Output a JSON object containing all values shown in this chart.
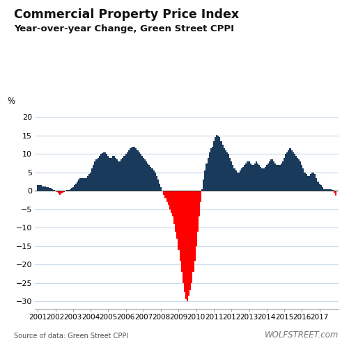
{
  "title1": "Commercial Property Price Index",
  "title2": "Year-over-year Change, Green Street CPPI",
  "ylabel": "%",
  "source": "Source of data: Green Street CPPI",
  "watermark": "WOLFSTREET.com",
  "color_positive": "#1a3a5c",
  "color_negative": "#ff0000",
  "ylim": [
    -32,
    22
  ],
  "yticks": [
    -30,
    -25,
    -20,
    -15,
    -10,
    -5,
    0,
    5,
    10,
    15,
    20
  ],
  "background_color": "#ffffff",
  "grid_color": "#c8d8e8",
  "values": [
    1.5,
    1.5,
    1.5,
    1.2,
    1.2,
    1.2,
    1.0,
    1.0,
    0.8,
    0.8,
    0.5,
    0.3,
    0.0,
    -0.3,
    -0.8,
    -1.0,
    -0.8,
    -0.5,
    -0.3,
    0.0,
    0.2,
    0.3,
    0.5,
    0.8,
    1.0,
    1.5,
    2.0,
    2.5,
    3.0,
    3.5,
    3.5,
    3.5,
    3.5,
    3.5,
    4.0,
    4.5,
    5.0,
    6.0,
    7.0,
    8.0,
    8.5,
    9.0,
    9.5,
    10.0,
    10.2,
    10.5,
    10.5,
    10.0,
    9.5,
    9.0,
    9.0,
    9.5,
    9.5,
    9.0,
    8.5,
    8.0,
    8.0,
    8.5,
    9.0,
    9.5,
    10.0,
    10.5,
    11.0,
    11.5,
    11.8,
    12.0,
    12.0,
    11.5,
    11.0,
    10.5,
    10.0,
    9.5,
    9.0,
    8.5,
    8.0,
    7.5,
    7.0,
    6.5,
    6.0,
    5.5,
    5.0,
    4.0,
    3.0,
    2.0,
    1.0,
    0.0,
    -1.0,
    -2.0,
    -3.0,
    -4.0,
    -5.0,
    -6.0,
    -7.0,
    -9.0,
    -11.0,
    -13.0,
    -16.0,
    -19.0,
    -22.0,
    -25.0,
    -27.5,
    -29.5,
    -30.0,
    -28.5,
    -27.0,
    -25.0,
    -22.0,
    -19.0,
    -15.0,
    -11.0,
    -7.0,
    -3.0,
    0.5,
    3.0,
    5.5,
    7.5,
    9.0,
    10.5,
    11.5,
    12.0,
    13.5,
    14.5,
    15.2,
    15.0,
    14.5,
    13.5,
    12.5,
    11.5,
    11.0,
    10.5,
    10.0,
    9.0,
    8.0,
    7.0,
    6.0,
    5.5,
    5.0,
    5.0,
    5.5,
    6.0,
    6.5,
    7.0,
    7.5,
    8.0,
    8.0,
    7.5,
    7.0,
    7.0,
    7.5,
    8.0,
    7.5,
    7.0,
    6.5,
    6.0,
    6.0,
    6.5,
    7.0,
    7.5,
    8.0,
    8.5,
    8.5,
    8.0,
    7.5,
    7.0,
    7.0,
    7.0,
    7.5,
    8.0,
    9.0,
    10.0,
    10.5,
    11.0,
    11.5,
    11.0,
    10.5,
    10.0,
    9.5,
    9.0,
    8.5,
    8.0,
    7.0,
    6.0,
    5.0,
    4.5,
    4.0,
    4.0,
    4.5,
    5.0,
    5.0,
    4.5,
    3.5,
    2.5,
    2.0,
    1.5,
    1.0,
    0.5,
    0.5,
    0.5,
    0.5,
    0.5,
    0.5,
    0.3,
    -0.5,
    -1.2
  ],
  "xtick_years": [
    "2001",
    "2002",
    "2003",
    "2004",
    "2005",
    "2006",
    "2007",
    "2008",
    "2009",
    "2010",
    "2011",
    "2012",
    "2013",
    "2014",
    "2015",
    "2016",
    "2017"
  ],
  "xtick_positions": [
    0,
    12,
    24,
    36,
    48,
    60,
    72,
    84,
    96,
    108,
    120,
    132,
    144,
    156,
    168,
    180,
    192
  ]
}
